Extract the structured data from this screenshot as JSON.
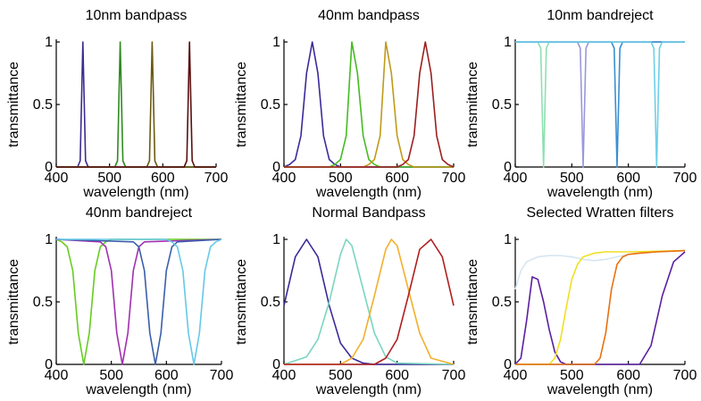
{
  "chart_data": [
    {
      "type": "line",
      "title": "10nm bandpass",
      "xlabel": "wavelength (nm)",
      "ylabel": "transmittance",
      "xlim": [
        400,
        700
      ],
      "ylim": [
        0,
        1
      ],
      "xticks": [
        400,
        500,
        600,
        700
      ],
      "yticks": [
        0,
        0.5,
        1
      ],
      "ytick_labels": [
        "0",
        "0.5",
        "1"
      ],
      "grid": false,
      "series": [
        {
          "color": "#3a2d8f",
          "x": [
            400,
            440,
            445,
            450,
            455,
            460,
            700
          ],
          "y": [
            0,
            0,
            0.05,
            1,
            0.05,
            0,
            0
          ]
        },
        {
          "color": "#2e8b1f",
          "x": [
            400,
            510,
            515,
            520,
            525,
            530,
            700
          ],
          "y": [
            0,
            0,
            0.05,
            1,
            0.05,
            0,
            0
          ]
        },
        {
          "color": "#6b5a10",
          "x": [
            400,
            570,
            575,
            580,
            585,
            590,
            700
          ],
          "y": [
            0,
            0,
            0.05,
            1,
            0.05,
            0,
            0
          ]
        },
        {
          "color": "#5a0f0f",
          "x": [
            400,
            640,
            645,
            650,
            655,
            660,
            700
          ],
          "y": [
            0,
            0,
            0.05,
            1,
            0.05,
            0,
            0
          ]
        }
      ]
    },
    {
      "type": "line",
      "title": "40nm bandpass",
      "xlabel": "wavelength (nm)",
      "ylabel": "transmittance",
      "xlim": [
        400,
        700
      ],
      "ylim": [
        0,
        1
      ],
      "xticks": [
        400,
        500,
        600,
        700
      ],
      "yticks": [
        0,
        0.5,
        1
      ],
      "ytick_labels": [
        "0",
        "0.5",
        "1"
      ],
      "grid": false,
      "series": [
        {
          "color": "#3b2a9a",
          "x": [
            400,
            410,
            420,
            430,
            440,
            450,
            460,
            470,
            480,
            490,
            500,
            700
          ],
          "y": [
            0,
            0.02,
            0.06,
            0.25,
            0.75,
            1,
            0.75,
            0.25,
            0.06,
            0.02,
            0,
            0
          ]
        },
        {
          "color": "#44bb22",
          "x": [
            400,
            480,
            490,
            500,
            510,
            520,
            530,
            540,
            550,
            560,
            570,
            700
          ],
          "y": [
            0,
            0,
            0.02,
            0.06,
            0.25,
            1,
            0.75,
            0.25,
            0.06,
            0.02,
            0,
            0
          ]
        },
        {
          "color": "#c09a1a",
          "x": [
            400,
            540,
            550,
            560,
            570,
            580,
            590,
            600,
            610,
            620,
            630,
            700
          ],
          "y": [
            0,
            0,
            0.02,
            0.06,
            0.25,
            1,
            0.75,
            0.25,
            0.06,
            0.02,
            0,
            0
          ]
        },
        {
          "color": "#9b1f1f",
          "x": [
            400,
            600,
            610,
            620,
            630,
            640,
            650,
            660,
            670,
            680,
            690,
            700
          ],
          "y": [
            0,
            0,
            0.02,
            0.06,
            0.25,
            0.75,
            1,
            0.75,
            0.25,
            0.06,
            0.02,
            0
          ]
        }
      ]
    },
    {
      "type": "line",
      "title": "10nm bandreject",
      "xlabel": "wavelength (nm)",
      "ylabel": "transmittance",
      "xlim": [
        400,
        700
      ],
      "ylim": [
        0,
        1
      ],
      "xticks": [
        400,
        500,
        600,
        700
      ],
      "yticks": [
        0,
        0.5,
        1
      ],
      "ytick_labels": [
        "0",
        "0.5",
        "1"
      ],
      "grid": false,
      "series": [
        {
          "color": "#8ee0b0",
          "x": [
            400,
            440,
            445,
            450,
            455,
            460,
            700
          ],
          "y": [
            1,
            1,
            0.95,
            0,
            0.95,
            1,
            1
          ]
        },
        {
          "color": "#9a98dc",
          "x": [
            400,
            510,
            515,
            520,
            525,
            530,
            700
          ],
          "y": [
            1,
            1,
            0.95,
            0,
            0.95,
            1,
            1
          ]
        },
        {
          "color": "#3a8fd0",
          "x": [
            400,
            570,
            575,
            580,
            585,
            590,
            700
          ],
          "y": [
            1,
            1,
            0.95,
            0,
            0.95,
            1,
            1
          ]
        },
        {
          "color": "#6fcfe8",
          "x": [
            400,
            640,
            645,
            650,
            655,
            660,
            700
          ],
          "y": [
            1,
            1,
            0.95,
            0,
            0.95,
            1,
            1
          ]
        }
      ]
    },
    {
      "type": "line",
      "title": "40nm bandreject",
      "xlabel": "wavelength (nm)",
      "ylabel": "transmittance",
      "xlim": [
        400,
        700
      ],
      "ylim": [
        0,
        1
      ],
      "xticks": [
        400,
        500,
        600,
        700
      ],
      "yticks": [
        0,
        0.5,
        1
      ],
      "ytick_labels": [
        "0",
        "0.5",
        "1"
      ],
      "grid": false,
      "series": [
        {
          "color": "#66cc22",
          "x": [
            400,
            410,
            420,
            430,
            440,
            450,
            460,
            470,
            480,
            490,
            500,
            700
          ],
          "y": [
            1,
            0.98,
            0.94,
            0.75,
            0.25,
            0,
            0.25,
            0.75,
            0.94,
            0.98,
            1,
            1
          ]
        },
        {
          "color": "#a030b0",
          "x": [
            400,
            480,
            490,
            500,
            510,
            520,
            530,
            540,
            550,
            560,
            700
          ],
          "y": [
            1,
            0.98,
            0.94,
            0.75,
            0.25,
            0,
            0.25,
            0.75,
            0.94,
            0.98,
            1
          ]
        },
        {
          "color": "#3a5faa",
          "x": [
            400,
            540,
            550,
            560,
            570,
            580,
            590,
            600,
            610,
            620,
            700
          ],
          "y": [
            1,
            0.98,
            0.94,
            0.75,
            0.25,
            0,
            0.25,
            0.75,
            0.94,
            0.98,
            1
          ]
        },
        {
          "color": "#66c8e8",
          "x": [
            400,
            600,
            610,
            620,
            630,
            640,
            650,
            660,
            670,
            680,
            690,
            700
          ],
          "y": [
            1,
            1,
            0.98,
            0.94,
            0.75,
            0.25,
            0,
            0.25,
            0.75,
            0.94,
            0.98,
            1
          ]
        }
      ]
    },
    {
      "type": "line",
      "title": "Normal Bandpass",
      "xlabel": "wavelength (nm)",
      "ylabel": "transmittance",
      "xlim": [
        400,
        700
      ],
      "ylim": [
        0,
        1
      ],
      "xticks": [
        400,
        500,
        600,
        700
      ],
      "yticks": [
        0,
        0.5,
        1
      ],
      "ytick_labels": [
        "0",
        "0.5",
        "1"
      ],
      "grid": false,
      "series": [
        {
          "color": "#3b2a9a",
          "x": [
            400,
            420,
            440,
            460,
            480,
            500,
            520,
            540,
            560,
            580,
            600,
            700
          ],
          "y": [
            0.47,
            0.86,
            1,
            0.86,
            0.47,
            0.17,
            0.05,
            0.01,
            0,
            0,
            0,
            0
          ]
        },
        {
          "color": "#7ad6c0",
          "x": [
            400,
            440,
            460,
            480,
            500,
            510,
            520,
            540,
            560,
            580,
            600,
            700
          ],
          "y": [
            0,
            0.06,
            0.2,
            0.5,
            0.88,
            1,
            0.95,
            0.6,
            0.25,
            0.06,
            0.01,
            0
          ]
        },
        {
          "color": "#f2b030",
          "x": [
            400,
            500,
            520,
            540,
            560,
            580,
            590,
            600,
            620,
            640,
            660,
            700
          ],
          "y": [
            0,
            0,
            0.05,
            0.2,
            0.55,
            0.92,
            1,
            0.95,
            0.6,
            0.25,
            0.05,
            0
          ]
        },
        {
          "color": "#b02020",
          "x": [
            400,
            560,
            580,
            600,
            620,
            640,
            660,
            680,
            700
          ],
          "y": [
            0,
            0,
            0.05,
            0.2,
            0.55,
            0.92,
            1,
            0.86,
            0.47
          ]
        }
      ]
    },
    {
      "type": "line",
      "title": "Selected Wratten filters",
      "xlabel": "wavelength (nm)",
      "ylabel": "transmittance",
      "xlim": [
        400,
        700
      ],
      "ylim": [
        0,
        1
      ],
      "xticks": [
        400,
        500,
        600,
        700
      ],
      "yticks": [
        0,
        0.5,
        1
      ],
      "ytick_labels": [
        "0",
        "0.5",
        "1"
      ],
      "grid": false,
      "series": [
        {
          "color": "#d6e6f2",
          "x": [
            400,
            410,
            420,
            440,
            460,
            480,
            500,
            520,
            540,
            560,
            580,
            600,
            650,
            700
          ],
          "y": [
            0.6,
            0.75,
            0.82,
            0.86,
            0.87,
            0.87,
            0.86,
            0.84,
            0.83,
            0.84,
            0.86,
            0.88,
            0.9,
            0.91
          ]
        },
        {
          "color": "#5a1fa0",
          "x": [
            400,
            410,
            420,
            430,
            440,
            450,
            460,
            470,
            480,
            490,
            500,
            620,
            640,
            660,
            680,
            700
          ],
          "y": [
            0,
            0.05,
            0.35,
            0.7,
            0.68,
            0.5,
            0.28,
            0.1,
            0.02,
            0,
            0,
            0,
            0.15,
            0.55,
            0.82,
            0.9
          ]
        },
        {
          "color": "#f0e020",
          "x": [
            400,
            460,
            470,
            480,
            490,
            500,
            510,
            520,
            540,
            560,
            600,
            700
          ],
          "y": [
            0,
            0,
            0.05,
            0.2,
            0.45,
            0.68,
            0.8,
            0.86,
            0.89,
            0.9,
            0.9,
            0.91
          ]
        },
        {
          "color": "#e87010",
          "x": [
            400,
            540,
            550,
            560,
            570,
            580,
            590,
            600,
            620,
            650,
            700
          ],
          "y": [
            0,
            0,
            0.05,
            0.25,
            0.6,
            0.8,
            0.86,
            0.88,
            0.89,
            0.9,
            0.91
          ]
        }
      ]
    }
  ]
}
